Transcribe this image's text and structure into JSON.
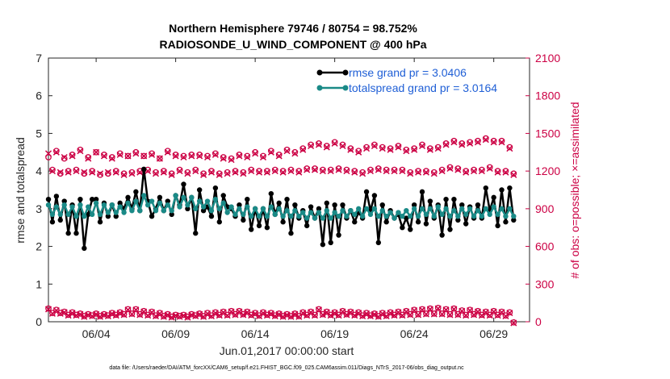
{
  "chart_data": {
    "type": "line",
    "title": "Northern Hemisphere 79746 / 80754 = 98.752%",
    "subtitle": "RADIOSONDE_U_WIND_COMPONENT @ 400 hPa",
    "xlabel": "Jun.01,2017 00:00:00 start",
    "ylabel": "rmse and totalspread",
    "y2label": "# of obs: o=possible; ×=assimilated",
    "footnote": "data file: /Users/raeder/DAI/ATM_forcXX/CAM6_setup/f.e21.FHIST_BGC.f09_025.CAM6assim.011/Diags_NTrS_2017-06/obs_diag_output.nc",
    "xlim": [
      1,
      31.25
    ],
    "ylim": [
      0,
      7
    ],
    "y2lim": [
      0,
      2100
    ],
    "x_ticks": [
      4,
      9,
      14,
      19,
      24,
      29
    ],
    "x_tick_labels": [
      "06/04",
      "06/09",
      "06/14",
      "06/19",
      "06/24",
      "06/29"
    ],
    "y_ticks": [
      0,
      1,
      2,
      3,
      4,
      5,
      6,
      7
    ],
    "y2_ticks": [
      0,
      300,
      600,
      900,
      1200,
      1500,
      1800,
      2100
    ],
    "x_start": 1.0,
    "x_step": 0.25,
    "series": [
      {
        "name": "rmse grand pr = 3.0406",
        "axis": "left",
        "color": "#000000",
        "values": [
          3.25,
          2.65,
          3.33,
          2.7,
          3.2,
          2.35,
          3.1,
          2.35,
          3.25,
          1.95,
          2.85,
          3.25,
          3.25,
          2.65,
          3.15,
          2.8,
          3.1,
          2.8,
          3.15,
          3.0,
          3.3,
          3.0,
          3.45,
          2.95,
          4.05,
          3.2,
          2.8,
          3.0,
          3.3,
          2.95,
          3.2,
          2.85,
          3.35,
          3.1,
          3.65,
          3.0,
          3.3,
          2.35,
          3.5,
          2.95,
          3.05,
          2.8,
          3.55,
          2.65,
          3.35,
          3.05,
          3.0,
          2.8,
          3.1,
          2.7,
          3.25,
          2.45,
          3.0,
          2.55,
          3.0,
          2.5,
          3.4,
          2.85,
          3.15,
          2.65,
          3.25,
          2.35,
          3.1,
          2.75,
          2.95,
          2.55,
          3.05,
          2.75,
          3.0,
          2.05,
          3.15,
          2.1,
          3.1,
          2.3,
          3.1,
          2.75,
          2.95,
          2.65,
          2.9,
          2.75,
          3.45,
          2.95,
          3.35,
          2.1,
          3.1,
          2.65,
          2.95,
          2.75,
          2.85,
          2.5,
          2.75,
          2.45,
          3.1,
          2.65,
          3.45,
          2.6,
          3.2,
          2.75,
          3.1,
          2.3,
          3.25,
          2.45,
          3.25,
          2.7,
          3.1,
          2.6,
          3.05,
          2.75,
          3.1,
          2.75,
          3.55,
          2.95,
          3.3,
          2.55,
          3.5,
          2.65,
          3.55,
          2.7
        ]
      },
      {
        "name": "totalspread grand pr = 3.0164",
        "axis": "left",
        "color": "#1a8a87",
        "values": [
          3.1,
          2.85,
          3.05,
          2.85,
          3.1,
          2.85,
          3.05,
          2.8,
          3.1,
          2.8,
          3.05,
          2.85,
          3.15,
          2.85,
          3.1,
          2.9,
          3.1,
          2.9,
          3.05,
          2.9,
          3.15,
          2.95,
          3.2,
          2.95,
          3.35,
          3.1,
          3.2,
          2.95,
          3.15,
          2.95,
          3.1,
          2.95,
          3.35,
          3.05,
          3.3,
          3.1,
          3.3,
          3.0,
          3.2,
          3.05,
          3.2,
          2.95,
          3.25,
          3.0,
          3.15,
          2.9,
          3.05,
          2.85,
          3.0,
          2.85,
          3.05,
          2.8,
          3.0,
          2.8,
          3.0,
          2.8,
          3.05,
          2.85,
          3.0,
          2.8,
          2.95,
          2.8,
          2.95,
          2.8,
          2.9,
          2.75,
          2.9,
          2.75,
          2.9,
          2.75,
          2.95,
          2.75,
          2.9,
          2.8,
          2.95,
          2.8,
          2.95,
          2.85,
          3.0,
          2.8,
          3.0,
          2.85,
          3.0,
          2.8,
          2.95,
          2.8,
          2.9,
          2.75,
          2.9,
          2.8,
          2.95,
          2.8,
          3.0,
          2.8,
          3.0,
          2.85,
          3.0,
          2.8,
          3.05,
          2.85,
          3.0,
          2.8,
          2.95,
          2.8,
          3.0,
          2.85,
          3.0,
          2.8,
          2.95,
          2.8,
          3.0,
          2.85,
          3.05,
          2.85,
          3.0,
          2.8,
          3.0,
          2.8
        ]
      },
      {
        "name": "possible obs",
        "axis": "right",
        "marker": "o",
        "color": "#cc0044",
        "values": [
          1310,
          1210,
          1360,
          1180,
          1300,
          1200,
          1330,
          1210,
          1370,
          1180,
          1310,
          1200,
          1350,
          1170,
          1330,
          1180,
          1310,
          1200,
          1340,
          1180,
          1320,
          1190,
          1350,
          1200,
          1320,
          1210,
          1340,
          1190,
          1300,
          1200,
          1360,
          1180,
          1330,
          1210,
          1320,
          1190,
          1330,
          1210,
          1330,
          1180,
          1320,
          1200,
          1340,
          1180,
          1310,
          1190,
          1300,
          1200,
          1330,
          1190,
          1320,
          1210,
          1350,
          1200,
          1320,
          1200,
          1360,
          1210,
          1330,
          1200,
          1370,
          1210,
          1350,
          1200,
          1380,
          1220,
          1410,
          1220,
          1420,
          1210,
          1400,
          1210,
          1430,
          1220,
          1410,
          1210,
          1380,
          1200,
          1360,
          1190,
          1390,
          1210,
          1410,
          1220,
          1390,
          1210,
          1380,
          1210,
          1400,
          1210,
          1370,
          1190,
          1380,
          1200,
          1410,
          1200,
          1380,
          1190,
          1390,
          1210,
          1420,
          1230,
          1440,
          1220,
          1420,
          1200,
          1430,
          1210,
          1440,
          1210,
          1460,
          1230,
          1440,
          1200,
          1440,
          1200,
          1390,
          1180
        ]
      },
      {
        "name": "assimilated obs",
        "axis": "right",
        "marker": "x",
        "color": "#cc0044",
        "values": [
          1340,
          1200,
          1350,
          1190,
          1310,
          1190,
          1320,
          1200,
          1360,
          1190,
          1300,
          1190,
          1350,
          1180,
          1320,
          1190,
          1300,
          1190,
          1330,
          1170,
          1320,
          1180,
          1340,
          1190,
          1320,
          1200,
          1330,
          1180,
          1300,
          1190,
          1350,
          1170,
          1320,
          1200,
          1310,
          1180,
          1320,
          1200,
          1320,
          1170,
          1310,
          1190,
          1330,
          1170,
          1300,
          1180,
          1290,
          1190,
          1320,
          1180,
          1310,
          1200,
          1340,
          1190,
          1310,
          1190,
          1350,
          1200,
          1320,
          1190,
          1360,
          1200,
          1340,
          1190,
          1370,
          1210,
          1400,
          1210,
          1410,
          1200,
          1390,
          1200,
          1420,
          1210,
          1400,
          1200,
          1370,
          1190,
          1350,
          1180,
          1380,
          1200,
          1400,
          1210,
          1380,
          1200,
          1370,
          1200,
          1390,
          1200,
          1360,
          1180,
          1370,
          1190,
          1400,
          1190,
          1370,
          1180,
          1380,
          1200,
          1410,
          1220,
          1430,
          1210,
          1410,
          1190,
          1420,
          1200,
          1430,
          1200,
          1450,
          1220,
          1430,
          1190,
          1430,
          1190,
          1380,
          1170
        ]
      },
      {
        "name": "possible obs (lower)",
        "axis": "right",
        "marker": "o",
        "color": "#cc0044",
        "values": [
          105,
          70,
          95,
          70,
          80,
          55,
          75,
          55,
          65,
          45,
          60,
          50,
          65,
          45,
          60,
          50,
          70,
          55,
          75,
          60,
          100,
          65,
          100,
          60,
          85,
          55,
          80,
          50,
          70,
          45,
          60,
          40,
          55,
          45,
          55,
          40,
          60,
          50,
          65,
          45,
          70,
          50,
          75,
          55,
          80,
          55,
          85,
          60,
          85,
          60,
          80,
          55,
          70,
          50,
          75,
          55,
          70,
          50,
          65,
          45,
          60,
          45,
          65,
          45,
          75,
          55,
          80,
          55,
          100,
          60,
          80,
          55,
          75,
          55,
          85,
          60,
          80,
          55,
          75,
          50,
          70,
          50,
          65,
          45,
          70,
          50,
          75,
          55,
          80,
          55,
          85,
          60,
          95,
          60,
          100,
          65,
          105,
          65,
          110,
          65,
          100,
          60,
          105,
          60,
          90,
          55,
          95,
          60,
          85,
          55,
          80,
          55,
          85,
          55,
          80,
          50,
          75,
          -5
        ]
      },
      {
        "name": "assimilated obs (lower)",
        "axis": "right",
        "marker": "x",
        "color": "#cc0044",
        "values": [
          100,
          65,
          90,
          65,
          75,
          50,
          70,
          50,
          60,
          40,
          55,
          45,
          60,
          40,
          55,
          45,
          65,
          50,
          70,
          55,
          95,
          60,
          95,
          55,
          80,
          50,
          75,
          45,
          65,
          40,
          55,
          35,
          50,
          40,
          50,
          35,
          55,
          45,
          60,
          40,
          65,
          45,
          70,
          50,
          75,
          50,
          80,
          55,
          80,
          55,
          75,
          50,
          65,
          45,
          70,
          50,
          65,
          45,
          60,
          40,
          55,
          40,
          60,
          40,
          70,
          50,
          75,
          50,
          95,
          55,
          75,
          50,
          70,
          50,
          80,
          55,
          75,
          50,
          70,
          45,
          65,
          45,
          60,
          40,
          65,
          45,
          70,
          50,
          75,
          50,
          80,
          55,
          90,
          55,
          95,
          60,
          100,
          60,
          105,
          60,
          95,
          55,
          100,
          55,
          85,
          50,
          90,
          55,
          80,
          50,
          75,
          50,
          80,
          50,
          75,
          45,
          70,
          -10
        ]
      }
    ]
  }
}
